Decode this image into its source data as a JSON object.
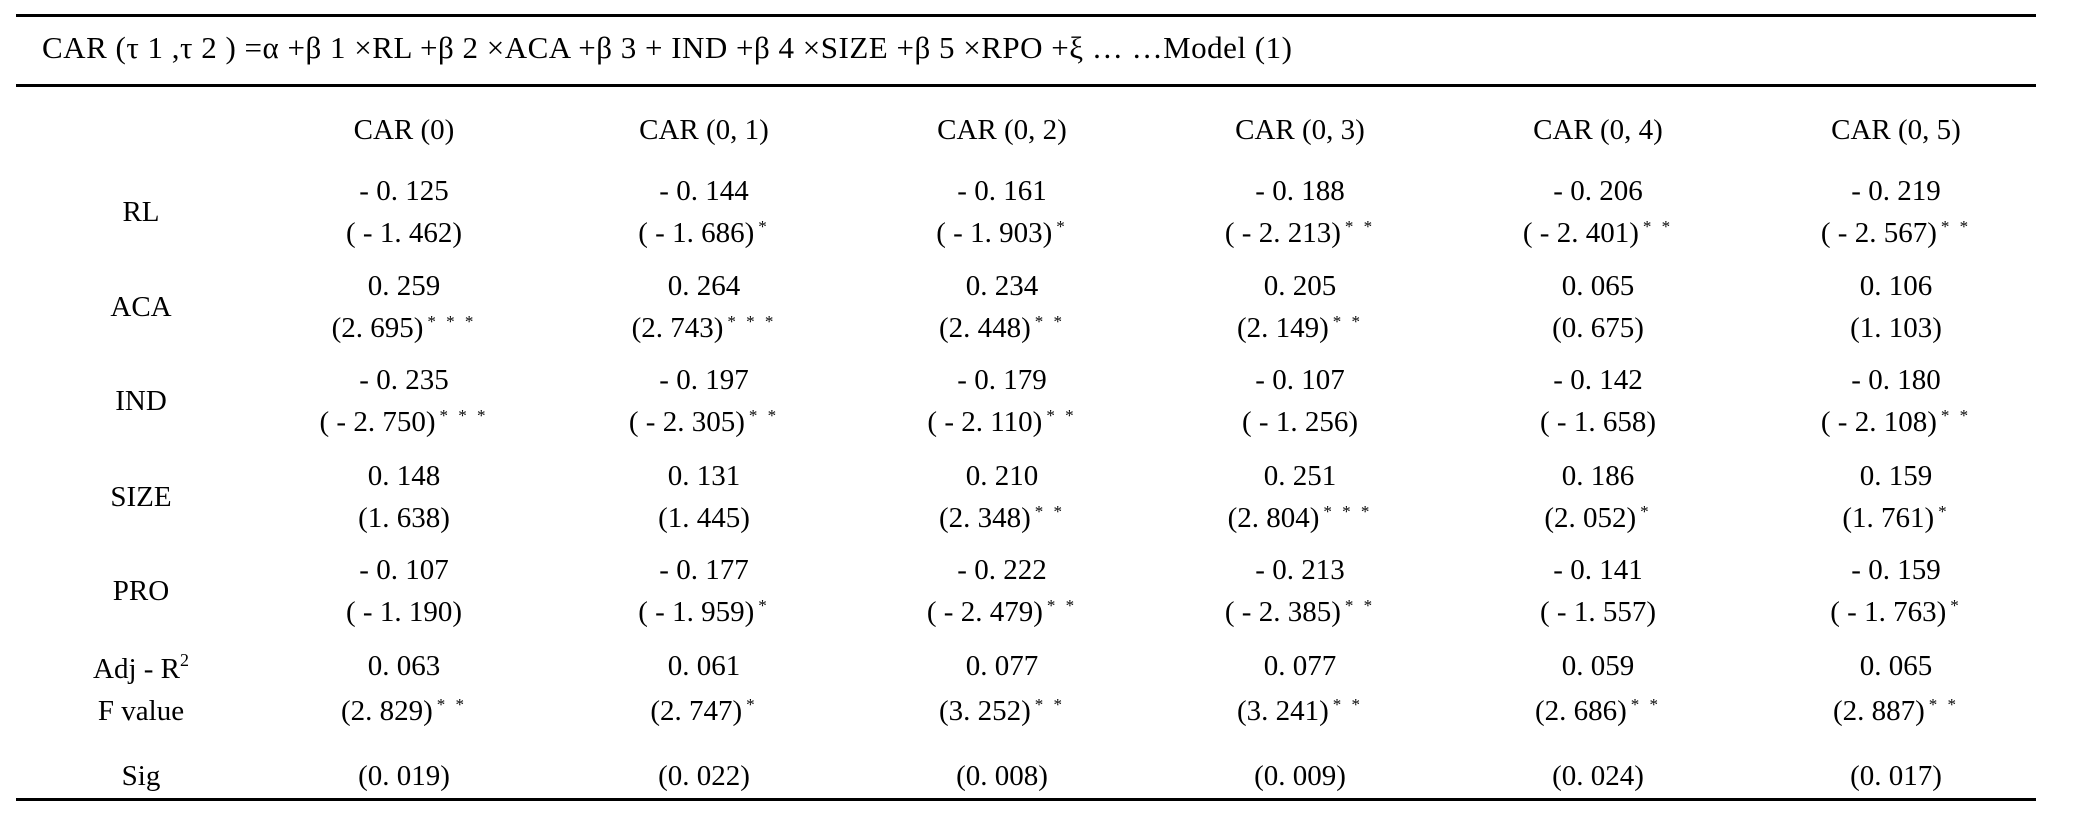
{
  "formula": "CAR (τ 1 ,τ 2 ) =α +β 1 ×RL +β 2 ×ACA +β 3 + IND +β 4 ×SIZE +β 5 ×RPO +ξ … …Model (1)",
  "columns": [
    "CAR (0)",
    "CAR (0, 1)",
    "CAR (0, 2)",
    "CAR (0, 3)",
    "CAR (0, 4)",
    "CAR (0, 5)"
  ],
  "rows": [
    {
      "label": "RL",
      "coef": [
        "- 0. 125",
        "- 0. 144",
        "- 0. 161",
        "- 0. 188",
        "- 0. 206",
        "- 0. 219"
      ],
      "t": [
        "( - 1. 462)",
        "( - 1. 686)",
        "( - 1. 903)",
        "( - 2. 213)",
        "( - 2. 401)",
        "( - 2. 567)"
      ],
      "stars": [
        "",
        "*",
        "*",
        "* *",
        "* *",
        "* *"
      ]
    },
    {
      "label": "ACA",
      "coef": [
        "0. 259",
        "0. 264",
        "0. 234",
        "0. 205",
        "0. 065",
        "0. 106"
      ],
      "t": [
        "(2. 695)",
        "(2. 743)",
        "(2. 448)",
        "(2. 149)",
        "(0. 675)",
        "(1. 103)"
      ],
      "stars": [
        "* * *",
        "* * *",
        "* *",
        "* *",
        "",
        ""
      ]
    },
    {
      "label": "IND",
      "coef": [
        "- 0. 235",
        "- 0. 197",
        "- 0. 179",
        "- 0. 107",
        "- 0. 142",
        "- 0. 180"
      ],
      "t": [
        "( - 2. 750)",
        "( - 2. 305)",
        "( - 2. 110)",
        "( - 1. 256)",
        "( - 1. 658)",
        "( - 2. 108)"
      ],
      "stars": [
        "* * *",
        "* *",
        "* *",
        "",
        "",
        "* *"
      ]
    },
    {
      "label": "SIZE",
      "coef": [
        "0. 148",
        "0. 131",
        "0. 210",
        "0. 251",
        "0. 186",
        "0. 159"
      ],
      "t": [
        "(1. 638)",
        "(1. 445)",
        "(2. 348)",
        "(2. 804)",
        "(2. 052)",
        "(1. 761)"
      ],
      "stars": [
        "",
        "",
        "* *",
        "* * *",
        "*",
        "*"
      ]
    },
    {
      "label": "PRO",
      "coef": [
        "- 0. 107",
        "- 0. 177",
        "- 0. 222",
        "- 0. 213",
        "- 0. 141",
        "- 0. 159"
      ],
      "t": [
        "( - 1. 190)",
        "( - 1. 959)",
        "( - 2. 479)",
        "( - 2. 385)",
        "( - 1. 557)",
        "( - 1. 763)"
      ],
      "stars": [
        "",
        "*",
        "* *",
        "* *",
        "",
        "*"
      ]
    },
    {
      "label": "Adj - R",
      "label_sup": "2",
      "label2": "F value",
      "coef": [
        "0. 063",
        "0. 061",
        "0. 077",
        "0. 077",
        "0. 059",
        "0. 065"
      ],
      "t": [
        "(2. 829)",
        "(2. 747)",
        "(3. 252)",
        "(3. 241)",
        "(2. 686)",
        "(2. 887)"
      ],
      "stars": [
        "* *",
        "*",
        "* *",
        "* *",
        "* *",
        "* *"
      ]
    },
    {
      "label": "Sig",
      "coef": [],
      "t": [
        "(0. 019)",
        "(0. 022)",
        "(0. 008)",
        "(0. 009)",
        "(0. 024)",
        "(0. 017)"
      ],
      "stars": [
        "",
        "",
        "",
        "",
        "",
        ""
      ]
    }
  ]
}
